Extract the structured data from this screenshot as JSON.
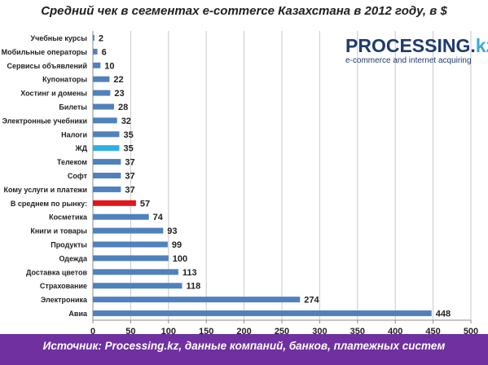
{
  "title": "Средний чек в сегментах e-commerce Казахстана в 2012 году, в $",
  "logo": {
    "brand": "PROCESSING.",
    "brand_accent": "kz",
    "tagline": "e-commerce and internet acquiring"
  },
  "footer": {
    "source": "Источник: Processing.kz, данные компаний, банков, платежных систем"
  },
  "colors": {
    "default_bar": "#4f81bd",
    "highlight_blue": "#2eb0e4",
    "highlight_red": "#e0161b",
    "footer_bg": "#7030a0",
    "grid": "#c8c8c8"
  },
  "chart_data": {
    "type": "bar",
    "orientation": "horizontal",
    "categories": [
      "Учебные курсы",
      "Мобильные операторы",
      "Сервисы объявлений",
      "Купонаторы",
      "Хостинг и домены",
      "Билеты",
      "Электронные учебники",
      "Налоги",
      "ЖД",
      "Телеком",
      "Софт",
      "Кому услуги и платежи",
      "В среднем по рынку:",
      "Косметика",
      "Книги и товары",
      "Продукты",
      "Одежда",
      "Доставка цветов",
      "Страхование",
      "Электроника",
      "Авиа"
    ],
    "values": [
      2,
      6,
      10,
      22,
      23,
      28,
      32,
      35,
      35,
      37,
      37,
      37,
      57,
      74,
      93,
      99,
      100,
      113,
      118,
      274,
      448
    ],
    "highlights": {
      "ЖД": "#2eb0e4",
      "В среднем по рынку:": "#e0161b"
    },
    "xlim": [
      0,
      500
    ],
    "xticks": [
      0,
      50,
      100,
      150,
      200,
      250,
      300,
      350,
      400,
      450,
      500
    ],
    "grid": true,
    "legend": "none"
  }
}
